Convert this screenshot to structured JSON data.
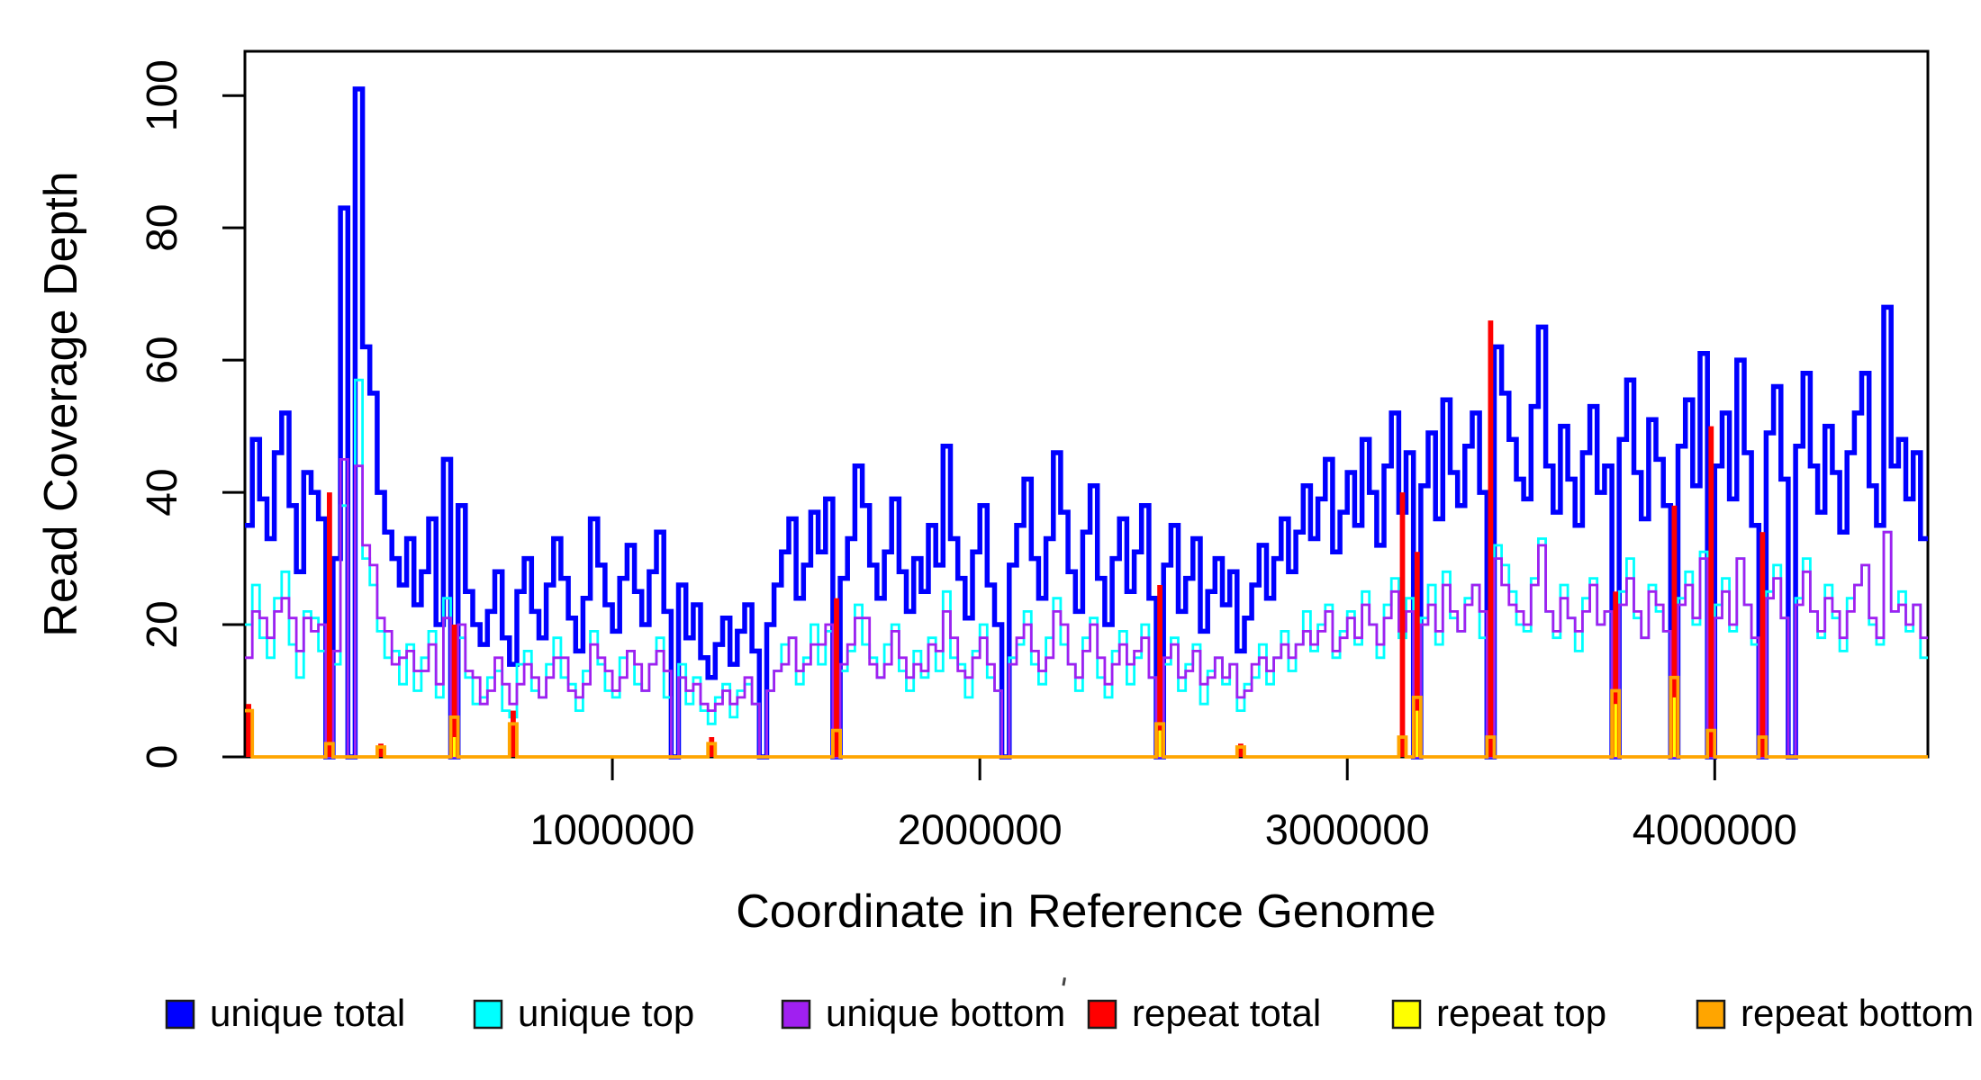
{
  "chart_data": {
    "type": "line",
    "subtype": "step-coverage",
    "title": "",
    "xlabel": "Coordinate in Reference Genome",
    "ylabel": "Read Coverage Depth",
    "xlim": [
      0,
      4580000
    ],
    "ylim": [
      0,
      106.7
    ],
    "grid": false,
    "legend_position": "bottom",
    "bin_size": 20000,
    "n_bins": 229,
    "x_ticks": [
      1000000,
      2000000,
      3000000,
      4000000
    ],
    "x_tick_labels": [
      "1000000",
      "2000000",
      "3000000",
      "4000000"
    ],
    "y_ticks": [
      0,
      20,
      40,
      60,
      80,
      100
    ],
    "y_tick_labels": [
      "0",
      "20",
      "40",
      "60",
      "80",
      "100"
    ],
    "axis_color": "#000000",
    "series": [
      {
        "name": "unique total",
        "color": "#0000FF",
        "lwd": 5.5,
        "style": "step",
        "values": [
          35,
          48,
          39,
          33,
          46,
          52,
          38,
          28,
          43,
          40,
          36,
          0,
          30,
          83,
          0,
          101,
          62,
          55,
          40,
          34,
          30,
          26,
          33,
          23,
          28,
          36,
          20,
          45,
          0,
          38,
          25,
          20,
          17,
          22,
          28,
          18,
          14,
          25,
          30,
          22,
          18,
          26,
          33,
          27,
          21,
          16,
          24,
          36,
          29,
          23,
          19,
          27,
          32,
          25,
          20,
          28,
          34,
          22,
          0,
          26,
          18,
          23,
          15,
          12,
          17,
          21,
          14,
          19,
          23,
          16,
          0,
          20,
          26,
          31,
          36,
          24,
          29,
          37,
          31,
          39,
          0,
          27,
          33,
          44,
          38,
          29,
          24,
          31,
          39,
          28,
          22,
          30,
          25,
          35,
          29,
          47,
          33,
          27,
          21,
          31,
          38,
          26,
          20,
          0,
          29,
          35,
          42,
          30,
          24,
          33,
          46,
          37,
          28,
          22,
          34,
          41,
          27,
          20,
          30,
          36,
          25,
          31,
          38,
          24,
          0,
          29,
          35,
          22,
          27,
          33,
          19,
          25,
          30,
          23,
          28,
          16,
          21,
          26,
          32,
          24,
          30,
          36,
          28,
          34,
          41,
          33,
          39,
          45,
          31,
          37,
          43,
          35,
          48,
          40,
          32,
          44,
          52,
          37,
          46,
          0,
          41,
          49,
          36,
          54,
          43,
          38,
          47,
          52,
          40,
          0,
          62,
          55,
          48,
          42,
          39,
          53,
          65,
          44,
          37,
          50,
          42,
          35,
          46,
          53,
          40,
          44,
          0,
          48,
          57,
          43,
          36,
          51,
          45,
          38,
          0,
          47,
          54,
          41,
          61,
          0,
          44,
          52,
          39,
          60,
          46,
          35,
          0,
          49,
          56,
          42,
          0,
          47,
          58,
          44,
          37,
          50,
          43,
          34,
          46,
          52,
          58,
          41,
          35,
          68,
          44,
          48,
          39,
          46,
          33
        ]
      },
      {
        "name": "unique top",
        "color": "#00FFFF",
        "lwd": 2.8,
        "style": "step",
        "values": [
          20,
          26,
          18,
          15,
          24,
          28,
          17,
          12,
          22,
          21,
          16,
          0,
          14,
          38,
          0,
          57,
          30,
          26,
          19,
          15,
          16,
          11,
          17,
          10,
          15,
          19,
          9,
          24,
          0,
          18,
          12,
          8,
          9,
          12,
          13,
          7,
          6,
          14,
          16,
          10,
          9,
          14,
          18,
          12,
          11,
          7,
          13,
          19,
          14,
          10,
          9,
          15,
          16,
          11,
          10,
          14,
          18,
          9,
          0,
          14,
          8,
          12,
          7,
          5,
          9,
          11,
          6,
          10,
          11,
          8,
          0,
          10,
          13,
          17,
          18,
          11,
          15,
          20,
          14,
          19,
          0,
          13,
          16,
          23,
          17,
          15,
          12,
          17,
          20,
          13,
          10,
          16,
          12,
          18,
          13,
          25,
          15,
          14,
          9,
          16,
          20,
          12,
          10,
          0,
          15,
          17,
          22,
          14,
          11,
          18,
          24,
          17,
          14,
          10,
          18,
          21,
          12,
          9,
          16,
          19,
          11,
          15,
          20,
          12,
          0,
          14,
          18,
          10,
          14,
          17,
          8,
          13,
          15,
          11,
          14,
          7,
          11,
          12,
          17,
          11,
          15,
          19,
          13,
          17,
          22,
          16,
          20,
          23,
          15,
          19,
          22,
          17,
          25,
          20,
          15,
          23,
          27,
          18,
          24,
          0,
          21,
          26,
          17,
          28,
          21,
          19,
          24,
          26,
          18,
          0,
          32,
          29,
          25,
          20,
          19,
          27,
          33,
          22,
          18,
          26,
          21,
          16,
          24,
          27,
          20,
          22,
          0,
          25,
          30,
          21,
          18,
          26,
          22,
          19,
          0,
          24,
          28,
          20,
          31,
          0,
          23,
          27,
          19,
          30,
          23,
          17,
          0,
          25,
          29,
          21,
          0,
          24,
          30,
          22,
          18,
          26,
          21,
          16,
          24,
          26,
          29,
          20,
          17,
          34,
          22,
          25,
          19,
          23,
          15
        ]
      },
      {
        "name": "unique bottom",
        "color": "#A020F0",
        "lwd": 2.8,
        "style": "step",
        "values": [
          15,
          22,
          21,
          18,
          22,
          24,
          21,
          16,
          21,
          19,
          20,
          0,
          16,
          45,
          0,
          44,
          32,
          29,
          21,
          19,
          14,
          15,
          16,
          13,
          13,
          17,
          11,
          21,
          0,
          20,
          13,
          12,
          8,
          10,
          15,
          11,
          8,
          11,
          14,
          12,
          9,
          12,
          15,
          15,
          10,
          9,
          11,
          17,
          15,
          13,
          10,
          12,
          16,
          14,
          10,
          14,
          16,
          13,
          0,
          12,
          10,
          11,
          8,
          7,
          8,
          10,
          8,
          9,
          12,
          8,
          0,
          10,
          13,
          14,
          18,
          13,
          14,
          17,
          17,
          20,
          0,
          14,
          17,
          21,
          21,
          14,
          12,
          14,
          19,
          15,
          12,
          14,
          13,
          17,
          16,
          22,
          18,
          13,
          12,
          15,
          18,
          14,
          10,
          0,
          14,
          18,
          20,
          16,
          13,
          15,
          22,
          20,
          14,
          12,
          16,
          20,
          15,
          11,
          14,
          17,
          14,
          16,
          18,
          12,
          0,
          15,
          17,
          12,
          13,
          16,
          11,
          12,
          15,
          12,
          14,
          9,
          10,
          14,
          15,
          13,
          15,
          17,
          15,
          17,
          19,
          17,
          19,
          22,
          16,
          18,
          21,
          18,
          23,
          20,
          17,
          21,
          25,
          19,
          22,
          0,
          20,
          23,
          19,
          26,
          22,
          19,
          23,
          26,
          22,
          0,
          30,
          26,
          23,
          22,
          20,
          26,
          32,
          22,
          19,
          24,
          21,
          19,
          22,
          26,
          20,
          22,
          0,
          23,
          27,
          22,
          18,
          25,
          23,
          19,
          0,
          23,
          26,
          21,
          30,
          0,
          21,
          25,
          20,
          30,
          23,
          18,
          0,
          24,
          27,
          21,
          0,
          23,
          28,
          22,
          19,
          24,
          22,
          18,
          22,
          26,
          29,
          21,
          18,
          34,
          22,
          23,
          20,
          23,
          18
        ]
      },
      {
        "name": "repeat total",
        "color": "#FF0000",
        "lwd": 5.5,
        "style": "spikes",
        "inset": 1.2,
        "default": 0,
        "sparse": {
          "0": 8,
          "11": 40,
          "18": 2,
          "28": 20,
          "36": 7,
          "63": 3,
          "80": 24,
          "124": 26,
          "135": 2,
          "157": 40,
          "159": 31,
          "169": 66,
          "186": 25,
          "194": 38,
          "199": 50,
          "206": 34
        }
      },
      {
        "name": "repeat top",
        "color": "#FFFF00",
        "lwd": 2.8,
        "style": "spikes",
        "inset": 2.4,
        "default": 0,
        "sparse": {
          "28": 3,
          "124": 4,
          "159": 7,
          "186": 8,
          "194": 9
        }
      },
      {
        "name": "repeat bottom",
        "color": "#FFA500",
        "lwd": 3.8,
        "style": "step",
        "default": 0,
        "sparse": {
          "0": 7,
          "11": 2,
          "18": 1.5,
          "28": 6,
          "36": 5,
          "63": 2,
          "80": 4,
          "124": 5,
          "135": 1.5,
          "157": 3,
          "159": 9,
          "169": 3,
          "186": 10,
          "194": 12,
          "199": 4,
          "206": 3
        }
      }
    ],
    "legend": [
      {
        "label": "unique total",
        "color": "#0000FF"
      },
      {
        "label": "unique top",
        "color": "#00FFFF"
      },
      {
        "label": "unique bottom",
        "color": "#A020F0"
      },
      {
        "label": "repeat total",
        "color": "#FF0000"
      },
      {
        "label": "repeat top",
        "color": "#FFFF00"
      },
      {
        "label": "repeat bottom",
        "color": "#FFA500"
      }
    ]
  }
}
